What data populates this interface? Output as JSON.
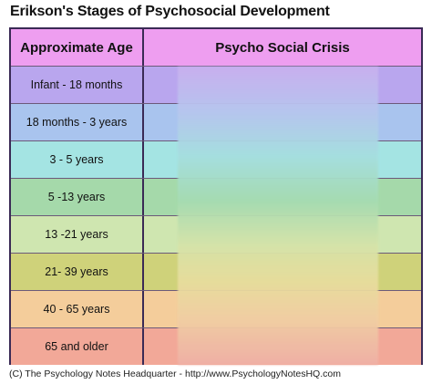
{
  "title": "Erikson's Stages of Psychosocial Development",
  "table": {
    "headers": {
      "age": "Approximate Age",
      "crisis": "Psycho Social Crisis"
    },
    "header_color": "#ee9ef0",
    "rows": [
      {
        "age": "Infant - 18 months",
        "color": "#b9a6ee"
      },
      {
        "age": "18 months - 3 years",
        "color": "#a9c4ee"
      },
      {
        "age": "3 - 5 years",
        "color": "#a4e4e3"
      },
      {
        "age": "5 -13 years",
        "color": "#a5d9aa"
      },
      {
        "age": "13 -21 years",
        "color": "#cfe6b0"
      },
      {
        "age": "21- 39 years",
        "color": "#cfd27a"
      },
      {
        "age": "40 - 65 years",
        "color": "#f4cd9b"
      },
      {
        "age": "65 and older",
        "color": "#f2a898"
      }
    ]
  },
  "footer": "(C) The Psychology Notes Headquarter - http://www.PsychologyNotesHQ.com"
}
